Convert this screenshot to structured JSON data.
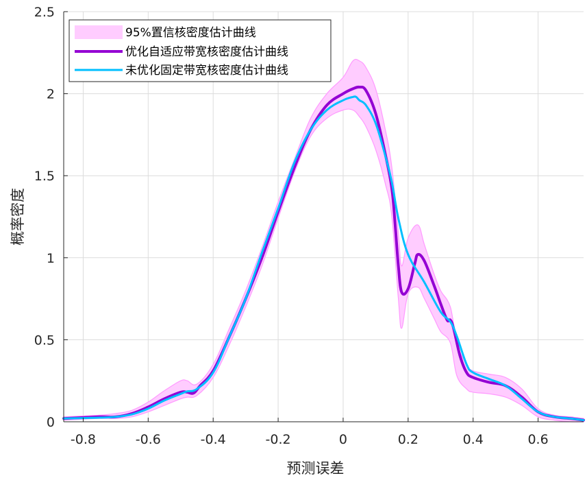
{
  "chart_data": {
    "type": "line",
    "title": "",
    "xlabel": "预测误差",
    "ylabel": "概率密度",
    "xlim": [
      -0.86,
      0.74
    ],
    "ylim": [
      0,
      2.5
    ],
    "xticks": [
      -0.8,
      -0.6,
      -0.4,
      -0.2,
      0,
      0.2,
      0.4,
      0.6
    ],
    "xtick_labels": [
      "-0.8",
      "-0.6",
      "-0.4",
      "-0.2",
      "0",
      "0.2",
      "0.4",
      "0.6"
    ],
    "yticks": [
      0,
      0.5,
      1,
      1.5,
      2,
      2.5
    ],
    "ytick_labels": [
      "0",
      "0.5",
      "1",
      "1.5",
      "2",
      "2.5"
    ],
    "grid": true,
    "legend_position": "top-left",
    "band": {
      "name": "95%置信核密度估计曲线",
      "color": "#ffccff",
      "edge_color": "#ff99ff",
      "x": [
        -0.86,
        -0.75,
        -0.7,
        -0.65,
        -0.6,
        -0.55,
        -0.5,
        -0.48,
        -0.45,
        -0.4,
        -0.35,
        -0.3,
        -0.25,
        -0.2,
        -0.15,
        -0.1,
        -0.05,
        0.0,
        0.03,
        0.05,
        0.07,
        0.1,
        0.13,
        0.15,
        0.17,
        0.18,
        0.2,
        0.23,
        0.25,
        0.28,
        0.3,
        0.33,
        0.35,
        0.38,
        0.4,
        0.45,
        0.5,
        0.55,
        0.6,
        0.65,
        0.7,
        0.74
      ],
      "upper": [
        0.03,
        0.04,
        0.05,
        0.07,
        0.12,
        0.19,
        0.25,
        0.25,
        0.23,
        0.35,
        0.57,
        0.8,
        1.06,
        1.34,
        1.6,
        1.85,
        2.0,
        2.1,
        2.2,
        2.2,
        2.16,
        2.03,
        1.78,
        1.55,
        1.15,
        0.95,
        1.12,
        1.2,
        1.08,
        0.9,
        0.8,
        0.7,
        0.48,
        0.35,
        0.31,
        0.29,
        0.27,
        0.2,
        0.08,
        0.04,
        0.03,
        0.02
      ],
      "lower": [
        0.01,
        0.02,
        0.02,
        0.03,
        0.06,
        0.1,
        0.14,
        0.15,
        0.16,
        0.27,
        0.47,
        0.7,
        0.95,
        1.24,
        1.52,
        1.74,
        1.85,
        1.9,
        1.9,
        1.86,
        1.8,
        1.66,
        1.45,
        1.25,
        0.75,
        0.57,
        0.78,
        0.82,
        0.75,
        0.63,
        0.55,
        0.48,
        0.28,
        0.2,
        0.18,
        0.17,
        0.15,
        0.1,
        0.03,
        0.01,
        0.0,
        0.0
      ]
    },
    "series": [
      {
        "name": "优化自适应带宽核密度估计曲线",
        "color": "#9400d3",
        "width": 4,
        "x": [
          -0.86,
          -0.75,
          -0.7,
          -0.65,
          -0.6,
          -0.55,
          -0.5,
          -0.48,
          -0.46,
          -0.44,
          -0.4,
          -0.35,
          -0.3,
          -0.25,
          -0.2,
          -0.15,
          -0.1,
          -0.05,
          0.0,
          0.03,
          0.05,
          0.07,
          0.1,
          0.13,
          0.15,
          0.16,
          0.17,
          0.18,
          0.2,
          0.22,
          0.23,
          0.25,
          0.28,
          0.3,
          0.32,
          0.33,
          0.34,
          0.36,
          0.38,
          0.4,
          0.45,
          0.5,
          0.55,
          0.6,
          0.65,
          0.7,
          0.74
        ],
        "y": [
          0.02,
          0.03,
          0.03,
          0.05,
          0.09,
          0.14,
          0.18,
          0.18,
          0.175,
          0.22,
          0.31,
          0.52,
          0.75,
          1.0,
          1.28,
          1.55,
          1.78,
          1.93,
          2.0,
          2.03,
          2.04,
          2.02,
          1.88,
          1.63,
          1.42,
          1.2,
          0.95,
          0.79,
          0.81,
          0.96,
          1.02,
          0.98,
          0.83,
          0.72,
          0.62,
          0.62,
          0.57,
          0.4,
          0.3,
          0.27,
          0.24,
          0.22,
          0.15,
          0.06,
          0.03,
          0.02,
          0.01
        ]
      },
      {
        "name": "未优化固定带宽核密度估计曲线",
        "color": "#00bfff",
        "width": 3,
        "x": [
          -0.86,
          -0.75,
          -0.7,
          -0.65,
          -0.6,
          -0.55,
          -0.5,
          -0.48,
          -0.45,
          -0.4,
          -0.35,
          -0.3,
          -0.25,
          -0.2,
          -0.15,
          -0.1,
          -0.05,
          0.0,
          0.03,
          0.04,
          0.05,
          0.07,
          0.1,
          0.13,
          0.15,
          0.17,
          0.2,
          0.25,
          0.3,
          0.33,
          0.35,
          0.38,
          0.4,
          0.45,
          0.5,
          0.55,
          0.6,
          0.65,
          0.7,
          0.74
        ],
        "y": [
          0.02,
          0.025,
          0.03,
          0.045,
          0.08,
          0.13,
          0.17,
          0.185,
          0.2,
          0.3,
          0.52,
          0.75,
          1.03,
          1.3,
          1.58,
          1.78,
          1.9,
          1.96,
          1.98,
          1.98,
          1.96,
          1.93,
          1.82,
          1.62,
          1.46,
          1.24,
          1.02,
          0.85,
          0.67,
          0.61,
          0.52,
          0.35,
          0.3,
          0.26,
          0.22,
          0.14,
          0.06,
          0.03,
          0.02,
          0.01
        ]
      }
    ]
  }
}
